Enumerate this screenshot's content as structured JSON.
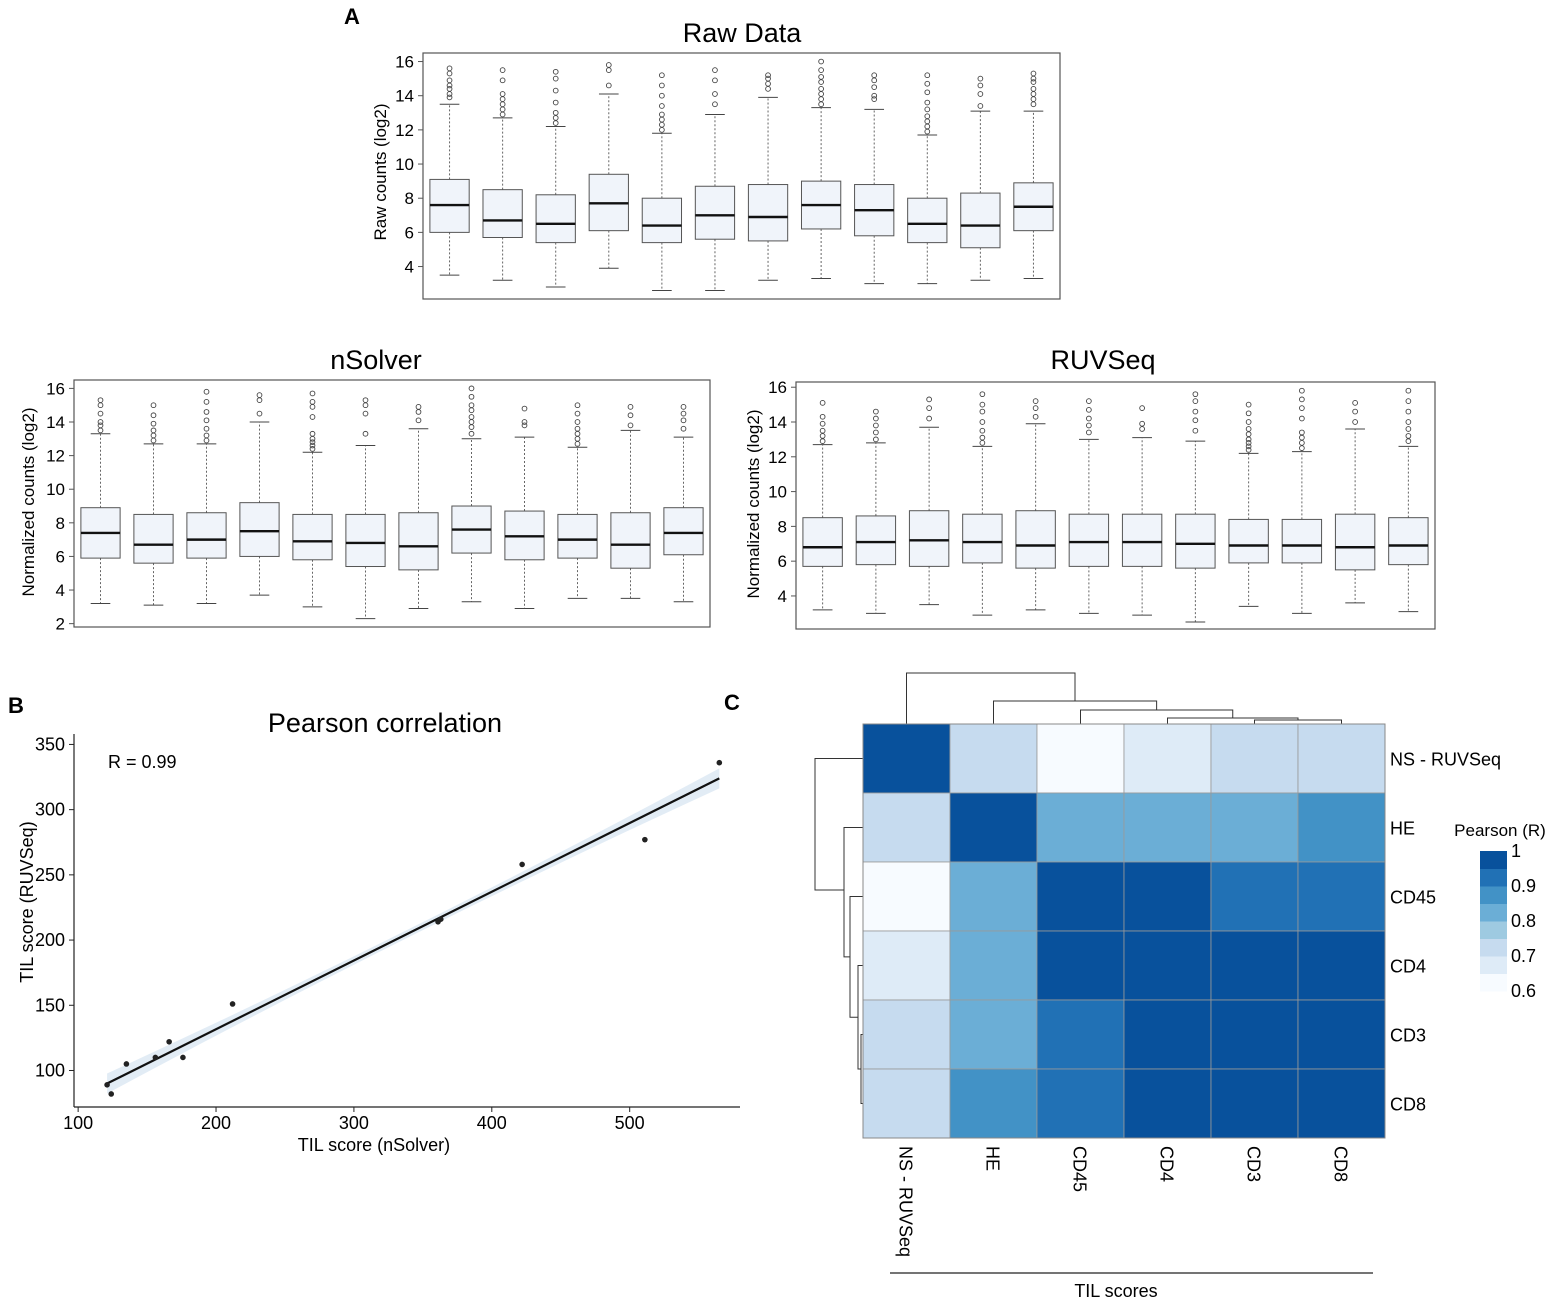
{
  "panel_labels": {
    "a": "A",
    "b": "B",
    "c": "C"
  },
  "chart_data": [
    {
      "id": "raw",
      "type": "boxplot",
      "title": "Raw Data",
      "ylabel": "Raw counts (log2)",
      "xlabel": "",
      "ylim": [
        2.1,
        16.5
      ],
      "yticks": [
        4,
        6,
        8,
        10,
        12,
        14,
        16
      ],
      "boxes": [
        {
          "q1": 6.0,
          "median": 7.6,
          "q3": 9.1,
          "wlow": 3.5,
          "whigh": 13.5,
          "outliers": [
            13.9,
            14.1,
            14.4,
            14.6,
            14.9,
            15.3,
            15.6
          ]
        },
        {
          "q1": 5.7,
          "median": 6.7,
          "q3": 8.5,
          "wlow": 3.2,
          "whigh": 12.7,
          "outliers": [
            12.9,
            13.2,
            13.5,
            13.8,
            14.1,
            14.9,
            15.5
          ]
        },
        {
          "q1": 5.4,
          "median": 6.5,
          "q3": 8.2,
          "wlow": 2.8,
          "whigh": 12.2,
          "outliers": [
            12.4,
            12.7,
            13.0,
            13.6,
            14.3,
            15.0,
            15.4
          ]
        },
        {
          "q1": 6.1,
          "median": 7.7,
          "q3": 9.4,
          "wlow": 3.9,
          "whigh": 14.1,
          "outliers": [
            14.6,
            15.5,
            15.8
          ]
        },
        {
          "q1": 5.4,
          "median": 6.4,
          "q3": 8.0,
          "wlow": 2.6,
          "whigh": 11.8,
          "outliers": [
            12.0,
            12.3,
            12.6,
            12.9,
            13.4,
            14.0,
            14.6,
            15.2
          ]
        },
        {
          "q1": 5.6,
          "median": 7.0,
          "q3": 8.7,
          "wlow": 2.6,
          "whigh": 12.9,
          "outliers": [
            13.5,
            14.1,
            14.9,
            15.5
          ]
        },
        {
          "q1": 5.5,
          "median": 6.9,
          "q3": 8.8,
          "wlow": 3.2,
          "whigh": 13.9,
          "outliers": [
            14.4,
            14.7,
            15.0,
            15.2
          ]
        },
        {
          "q1": 6.2,
          "median": 7.6,
          "q3": 9.0,
          "wlow": 3.3,
          "whigh": 13.3,
          "outliers": [
            13.5,
            13.8,
            14.1,
            14.4,
            14.8,
            15.1,
            15.5,
            16.0
          ]
        },
        {
          "q1": 5.8,
          "median": 7.3,
          "q3": 8.8,
          "wlow": 3.0,
          "whigh": 13.2,
          "outliers": [
            13.8,
            14.0,
            14.5,
            14.9,
            15.2
          ]
        },
        {
          "q1": 5.4,
          "median": 6.5,
          "q3": 8.0,
          "wlow": 3.0,
          "whigh": 11.7,
          "outliers": [
            11.9,
            12.2,
            12.5,
            12.8,
            13.2,
            13.6,
            14.2,
            14.7,
            15.2
          ]
        },
        {
          "q1": 5.1,
          "median": 6.4,
          "q3": 8.3,
          "wlow": 3.2,
          "whigh": 13.1,
          "outliers": [
            13.4,
            14.1,
            14.6,
            15.0
          ]
        },
        {
          "q1": 6.1,
          "median": 7.5,
          "q3": 8.9,
          "wlow": 3.3,
          "whigh": 13.1,
          "outliers": [
            13.5,
            13.8,
            14.1,
            14.4,
            14.8,
            15.0,
            15.3
          ]
        }
      ]
    },
    {
      "id": "nsolver",
      "type": "boxplot",
      "title": "nSolver",
      "ylabel": "Normalized counts (log2)",
      "xlabel": "",
      "ylim": [
        1.8,
        16.5
      ],
      "yticks": [
        2,
        4,
        6,
        8,
        10,
        12,
        14,
        16
      ],
      "boxes": [
        {
          "q1": 5.9,
          "median": 7.4,
          "q3": 8.9,
          "wlow": 3.2,
          "whigh": 13.3,
          "outliers": [
            13.5,
            13.8,
            14.0,
            14.5,
            15.0,
            15.3
          ]
        },
        {
          "q1": 5.6,
          "median": 6.7,
          "q3": 8.5,
          "wlow": 3.1,
          "whigh": 12.7,
          "outliers": [
            12.9,
            13.2,
            13.5,
            13.9,
            14.4,
            15.0
          ]
        },
        {
          "q1": 5.9,
          "median": 7.0,
          "q3": 8.6,
          "wlow": 3.2,
          "whigh": 12.7,
          "outliers": [
            12.9,
            13.2,
            13.6,
            14.1,
            14.6,
            15.2,
            15.8
          ]
        },
        {
          "q1": 6.0,
          "median": 7.5,
          "q3": 9.2,
          "wlow": 3.7,
          "whigh": 14.0,
          "outliers": [
            14.5,
            15.3,
            15.6
          ]
        },
        {
          "q1": 5.8,
          "median": 6.9,
          "q3": 8.5,
          "wlow": 3.0,
          "whigh": 12.2,
          "outliers": [
            12.4,
            12.6,
            12.8,
            13.0,
            13.3,
            14.3,
            14.9,
            15.2,
            15.7
          ]
        },
        {
          "q1": 5.4,
          "median": 6.8,
          "q3": 8.5,
          "wlow": 2.3,
          "whigh": 12.6,
          "outliers": [
            13.3,
            14.5,
            15.0,
            15.3
          ]
        },
        {
          "q1": 5.2,
          "median": 6.6,
          "q3": 8.6,
          "wlow": 2.9,
          "whigh": 13.6,
          "outliers": [
            14.1,
            14.6,
            14.9
          ]
        },
        {
          "q1": 6.2,
          "median": 7.6,
          "q3": 9.0,
          "wlow": 3.3,
          "whigh": 13.0,
          "outliers": [
            13.3,
            13.7,
            14.0,
            14.3,
            14.7,
            15.0,
            15.5,
            16.0
          ]
        },
        {
          "q1": 5.8,
          "median": 7.2,
          "q3": 8.7,
          "wlow": 2.9,
          "whigh": 13.1,
          "outliers": [
            13.8,
            14.0,
            14.8
          ]
        },
        {
          "q1": 5.9,
          "median": 7.0,
          "q3": 8.5,
          "wlow": 3.5,
          "whigh": 12.5,
          "outliers": [
            12.7,
            13.0,
            13.3,
            13.6,
            14.0,
            14.5,
            15.0
          ]
        },
        {
          "q1": 5.3,
          "median": 6.7,
          "q3": 8.6,
          "wlow": 3.5,
          "whigh": 13.5,
          "outliers": [
            13.8,
            14.4,
            14.9
          ]
        },
        {
          "q1": 6.1,
          "median": 7.4,
          "q3": 8.9,
          "wlow": 3.3,
          "whigh": 13.1,
          "outliers": [
            13.6,
            14.1,
            14.5,
            14.9
          ]
        }
      ]
    },
    {
      "id": "ruvseq",
      "type": "boxplot",
      "title": "RUVSeq",
      "ylabel": "Normalized counts (log2)",
      "xlabel": "",
      "ylim": [
        2.1,
        16.3
      ],
      "yticks": [
        4,
        6,
        8,
        10,
        12,
        14,
        16
      ],
      "boxes": [
        {
          "q1": 5.7,
          "median": 6.8,
          "q3": 8.5,
          "wlow": 3.2,
          "whigh": 12.7,
          "outliers": [
            12.9,
            13.2,
            13.5,
            13.9,
            14.3,
            15.1
          ]
        },
        {
          "q1": 5.8,
          "median": 7.1,
          "q3": 8.6,
          "wlow": 3.0,
          "whigh": 12.8,
          "outliers": [
            13.0,
            13.4,
            13.8,
            14.2,
            14.6
          ]
        },
        {
          "q1": 5.7,
          "median": 7.2,
          "q3": 8.9,
          "wlow": 3.5,
          "whigh": 13.7,
          "outliers": [
            14.2,
            14.8,
            15.3
          ]
        },
        {
          "q1": 5.9,
          "median": 7.1,
          "q3": 8.7,
          "wlow": 2.9,
          "whigh": 12.6,
          "outliers": [
            12.8,
            13.1,
            13.5,
            14.0,
            14.6,
            15.0,
            15.6
          ]
        },
        {
          "q1": 5.6,
          "median": 6.9,
          "q3": 8.9,
          "wlow": 3.2,
          "whigh": 13.9,
          "outliers": [
            14.3,
            14.8,
            15.2
          ]
        },
        {
          "q1": 5.7,
          "median": 7.1,
          "q3": 8.7,
          "wlow": 3.0,
          "whigh": 13.0,
          "outliers": [
            13.4,
            13.8,
            14.2,
            14.7,
            15.2
          ]
        },
        {
          "q1": 5.7,
          "median": 7.1,
          "q3": 8.7,
          "wlow": 2.9,
          "whigh": 13.1,
          "outliers": [
            13.6,
            13.9,
            14.8
          ]
        },
        {
          "q1": 5.6,
          "median": 7.0,
          "q3": 8.7,
          "wlow": 2.5,
          "whigh": 12.9,
          "outliers": [
            13.5,
            14.1,
            14.6,
            15.2,
            15.6
          ]
        },
        {
          "q1": 5.9,
          "median": 6.9,
          "q3": 8.4,
          "wlow": 3.4,
          "whigh": 12.2,
          "outliers": [
            12.4,
            12.6,
            12.8,
            13.0,
            13.3,
            13.6,
            14.0,
            14.5,
            15.0
          ]
        },
        {
          "q1": 5.9,
          "median": 6.9,
          "q3": 8.4,
          "wlow": 3.0,
          "whigh": 12.3,
          "outliers": [
            12.5,
            12.8,
            13.1,
            13.4,
            14.2,
            14.8,
            15.3,
            15.8
          ]
        },
        {
          "q1": 5.5,
          "median": 6.8,
          "q3": 8.7,
          "wlow": 3.6,
          "whigh": 13.6,
          "outliers": [
            14.0,
            14.6,
            15.1
          ]
        },
        {
          "q1": 5.8,
          "median": 6.9,
          "q3": 8.5,
          "wlow": 3.1,
          "whigh": 12.6,
          "outliers": [
            12.9,
            13.2,
            13.6,
            14.0,
            14.6,
            15.2,
            15.8
          ]
        }
      ]
    },
    {
      "id": "pearson",
      "type": "scatter",
      "title": "Pearson correlation",
      "xlabel": "TIL score (nSolver)",
      "ylabel": "TIL score (RUVSeq)",
      "annotation": "R = 0.99",
      "xlim": [
        97,
        580
      ],
      "ylim": [
        72,
        358
      ],
      "xticks": [
        100,
        200,
        300,
        400,
        500
      ],
      "yticks": [
        100,
        150,
        200,
        250,
        300,
        350
      ],
      "points": [
        {
          "x": 121,
          "y": 89
        },
        {
          "x": 124,
          "y": 82
        },
        {
          "x": 135,
          "y": 105
        },
        {
          "x": 156,
          "y": 110
        },
        {
          "x": 166,
          "y": 122
        },
        {
          "x": 176,
          "y": 110
        },
        {
          "x": 212,
          "y": 151
        },
        {
          "x": 361,
          "y": 214
        },
        {
          "x": 363,
          "y": 216
        },
        {
          "x": 422,
          "y": 258
        },
        {
          "x": 511,
          "y": 277
        },
        {
          "x": 565,
          "y": 336
        }
      ],
      "fit": {
        "x0": 121,
        "y0": 90,
        "x1": 565,
        "y1": 324
      }
    },
    {
      "id": "heatmap",
      "type": "heatmap",
      "rows": [
        "NS - RUVSeq",
        "HE",
        "CD45",
        "CD4",
        "CD3",
        "CD8"
      ],
      "cols": [
        "NS - RUVSeq",
        "HE",
        "CD45",
        "CD4",
        "CD3",
        "CD8"
      ],
      "values": [
        [
          1.0,
          0.71,
          0.6,
          0.64,
          0.71,
          0.71
        ],
        [
          0.71,
          1.0,
          0.82,
          0.82,
          0.82,
          0.87
        ],
        [
          0.6,
          0.82,
          0.98,
          0.98,
          0.93,
          0.93
        ],
        [
          0.64,
          0.82,
          0.98,
          1.0,
          0.99,
          0.99
        ],
        [
          0.71,
          0.82,
          0.93,
          0.99,
          1.0,
          0.99
        ],
        [
          0.71,
          0.87,
          0.93,
          0.99,
          0.99,
          1.0
        ]
      ],
      "xlabel": "TIL scores",
      "legend_title": "Pearson (R)",
      "legend_ticks": [
        "1",
        "0.9",
        "0.8",
        "0.7",
        "0.6"
      ],
      "scale": [
        0.6,
        1.0
      ],
      "palette": [
        "#f7fbff",
        "#deebf7",
        "#c6dbef",
        "#9ecae1",
        "#6baed6",
        "#4292c6",
        "#2171b5",
        "#08519c"
      ]
    }
  ]
}
